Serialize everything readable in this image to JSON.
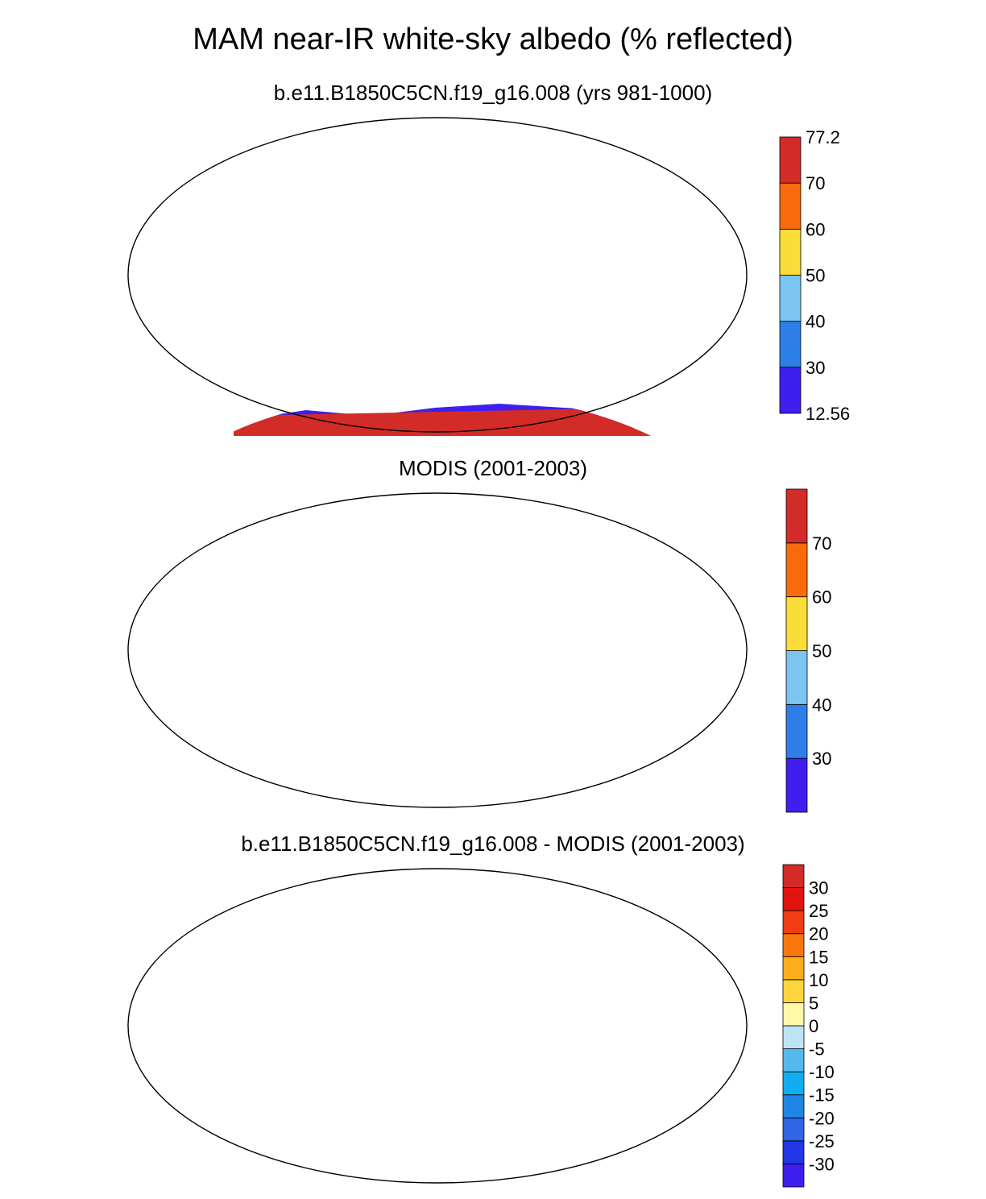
{
  "title": "MAM near-IR white-sky albedo (% reflected)",
  "panels": [
    {
      "id": "model",
      "subtitle": "b.e11.B1850C5CN.f19_g16.008 (yrs 981-1000)",
      "colorbar": {
        "colors": [
          "#3f1fef",
          "#2e7ee8",
          "#7cc5f0",
          "#fbdd3a",
          "#f96a0c",
          "#d32b27"
        ],
        "labels": [
          "12.56",
          "30",
          "40",
          "50",
          "60",
          "70",
          "77.2"
        ],
        "label_at_edges": true
      }
    },
    {
      "id": "obs",
      "subtitle": "MODIS (2001-2003)",
      "colorbar": {
        "colors": [
          "#3f1fef",
          "#2e7ee8",
          "#7cc5f0",
          "#fbdd3a",
          "#f96a0c",
          "#d32b27"
        ],
        "labels": [
          "30",
          "40",
          "50",
          "60",
          "70"
        ],
        "label_at_edges": false
      }
    },
    {
      "id": "diff",
      "subtitle": "b.e11.B1850C5CN.f19_g16.008 - MODIS (2001-2003)",
      "colorbar": {
        "colors": [
          "#3c1ff0",
          "#2236e6",
          "#2e66e3",
          "#1f86e6",
          "#10aef0",
          "#54b9ee",
          "#bde3f5",
          "#fef8a8",
          "#fcd63c",
          "#fbae1b",
          "#f9760e",
          "#f23c14",
          "#e1130f",
          "#d32b27"
        ],
        "labels": [
          "-30",
          "-25",
          "-20",
          "-15",
          "-10",
          "-5",
          "0",
          "5",
          "10",
          "15",
          "20",
          "25",
          "30"
        ],
        "label_at_edges": false
      }
    }
  ]
}
